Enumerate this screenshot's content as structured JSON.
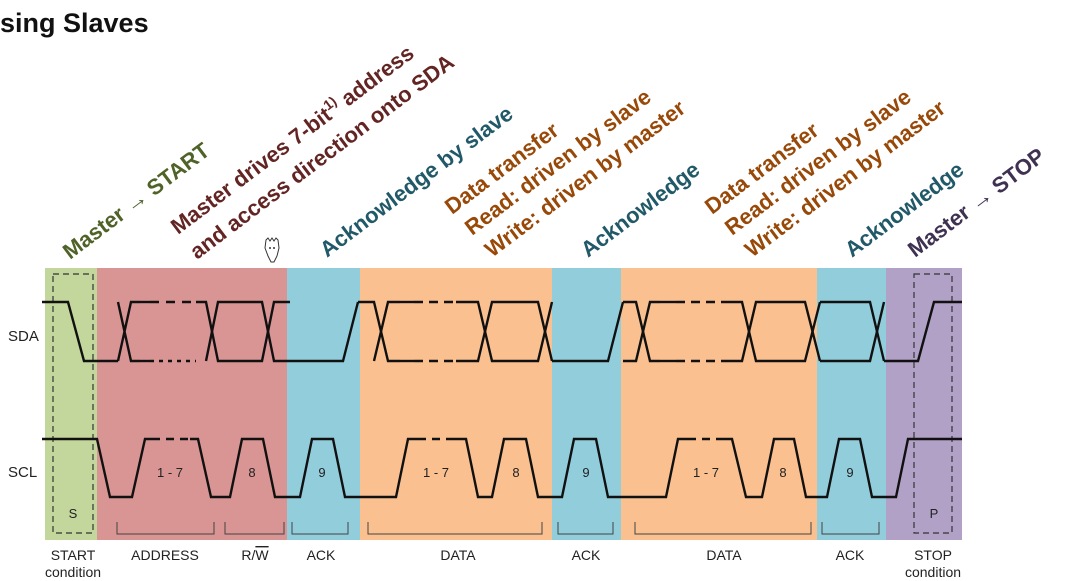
{
  "title": "sing Slaves",
  "annotations": {
    "master_start": "Master → START",
    "addr_line1": "Master drives 7-bit",
    "addr_sup": "1)",
    "addr_line1_end": " address",
    "addr_line2": "and access direction onto SDA",
    "ack_by_slave": "Acknowledge by slave",
    "data1_line1": "Data transfer",
    "data1_line2": "Read: driven by slave",
    "data1_line3": "Write: driven by master",
    "ack2": "Acknowledge",
    "data2_line1": "Data transfer",
    "data2_line2": "Read: driven by slave",
    "data2_line3": "Write: driven by master",
    "ack3": "Acknowledge",
    "master_stop": "Master → STOP"
  },
  "signals": {
    "sda": "SDA",
    "scl": "SCL"
  },
  "pulse_labels": {
    "addr_bits": "1 - 7",
    "rw_bit": "8",
    "ack1": "9",
    "data1_bits": "1 - 7",
    "data1_bit8": "8",
    "ack2": "9",
    "data2_bits": "1 - 7",
    "data2_bit8": "8",
    "ack3": "9",
    "start": "S",
    "stop": "P"
  },
  "bottom_labels": {
    "start_l1": "START",
    "start_l2": "condition",
    "address": "ADDRESS",
    "rw_r": "R/",
    "rw_w": "W",
    "ack1": "ACK",
    "data1": "DATA",
    "ack2": "ACK",
    "data2": "DATA",
    "ack3": "ACK",
    "stop_l1": "STOP",
    "stop_l2": "condition"
  },
  "colors": {
    "start": "#c3d69b",
    "address": "#d99594",
    "ack": "#92cddc",
    "data": "#fac090",
    "stop": "#b2a1c7",
    "green_text": "#4f6228",
    "maroon_text": "#632523",
    "teal_text": "#215968",
    "brown_text": "#984807",
    "purple_text": "#3f3151"
  }
}
